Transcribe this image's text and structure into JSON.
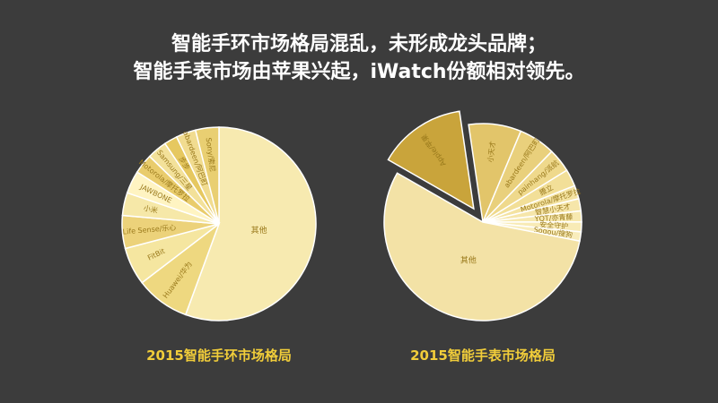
{
  "headline": {
    "line1": "智能手环市场格局混乱，未形成龙头品牌；",
    "line2": "智能手表市场由苹果兴起，iWatch份额相对领先。"
  },
  "colors": {
    "background": "#3c3c3c",
    "caption": "#f1cd3a",
    "label": "#9a7a1c",
    "highlight": "#c9a43b"
  },
  "chart_data": [
    {
      "type": "pie",
      "title": "2015智能手环市场格局",
      "slices": [
        {
          "label": "其他",
          "value": 55.6,
          "color": "#f7eab0"
        },
        {
          "label": "Huawei/华为",
          "value": 9.0,
          "color": "#eed880"
        },
        {
          "label": "FitBit",
          "value": 6.3,
          "color": "#f5e6a0"
        },
        {
          "label": "Life Sense/乐心",
          "value": 5.5,
          "color": "#ecd27a"
        },
        {
          "label": "小米",
          "value": 3.8,
          "color": "#f6e8a8"
        },
        {
          "label": "JAWBONE",
          "value": 3.8,
          "color": "#fff4c2"
        },
        {
          "label": "Motorola/摩托罗拉",
          "value": 3.3,
          "color": "#e9cc6c"
        },
        {
          "label": "Samsung/三星",
          "value": 3.3,
          "color": "#f3e19a"
        },
        {
          "label": "步步",
          "value": 2.2,
          "color": "#e6c860"
        },
        {
          "label": "abardeen/阿巴町",
          "value": 3.3,
          "color": "#f1dc90"
        },
        {
          "label": "Sony/索尼",
          "value": 3.9,
          "color": "#e9cf72"
        }
      ]
    },
    {
      "type": "pie",
      "title": "2015智能手表市场格局",
      "slices": [
        {
          "label": "Apple/苹果",
          "value": 14.4,
          "color": "#c9a43b",
          "exploded": true
        },
        {
          "label": "小天才",
          "value": 8.6,
          "color": "#e2c56a"
        },
        {
          "label": "abardeen/阿巴町",
          "value": 6.0,
          "color": "#e9d07c"
        },
        {
          "label": "painhang/派航",
          "value": 3.9,
          "color": "#efd98c"
        },
        {
          "label": "謄立",
          "value": 2.8,
          "color": "#f2df98"
        },
        {
          "label": "Motorola/摩托罗拉",
          "value": 2.2,
          "color": "#f4e3a2"
        },
        {
          "label": "智慧小天才",
          "value": 2.0,
          "color": "#f6e6aa"
        },
        {
          "label": "YQT/亦青藤",
          "value": 1.8,
          "color": "#f7e9b0"
        },
        {
          "label": "安全守护",
          "value": 1.6,
          "color": "#f8ebb6"
        },
        {
          "label": "Sogou/搜狗",
          "value": 1.5,
          "color": "#f9edbc"
        },
        {
          "label": "其他",
          "value": 55.2,
          "color": "#f3e2a6"
        }
      ]
    }
  ]
}
